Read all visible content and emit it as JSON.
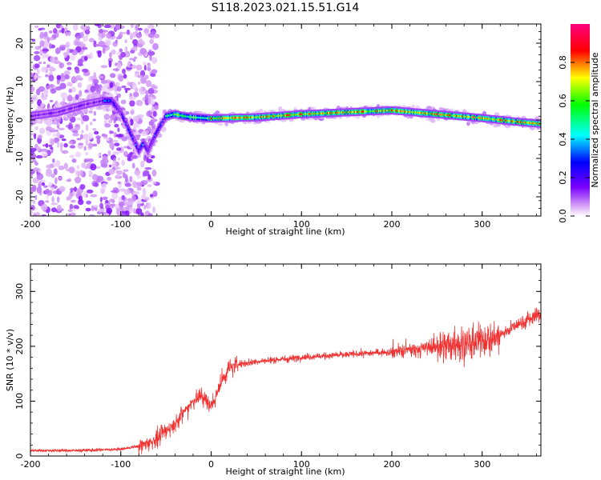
{
  "title": "S118.2023.021.15.51.G14",
  "chart_data": [
    {
      "type": "heatmap",
      "name": "spectrogram",
      "xlabel": "Height of straight line (km)",
      "ylabel": "Frequency (Hz)",
      "xlim": [
        -200,
        365
      ],
      "ylim": [
        -25,
        25
      ],
      "xticks": [
        -200,
        -100,
        0,
        100,
        200,
        300
      ],
      "yticks": [
        -20,
        -10,
        0,
        10,
        20
      ],
      "colorbar": {
        "label": "Normalized spectral amplitude",
        "range": [
          0,
          1
        ],
        "ticks": [
          "0.0",
          "0.2",
          "0.4",
          "0.6",
          "0.8"
        ],
        "colors": [
          "#ffffff",
          "#d9a6f5",
          "#7a00ff",
          "#0000ff",
          "#00ffff",
          "#00ff00",
          "#ffff00",
          "#ff0000",
          "#ff0080"
        ]
      },
      "ridge": {
        "x": [
          -200,
          -170,
          -140,
          -120,
          -110,
          -100,
          -90,
          -80,
          -75,
          -70,
          -62,
          -55,
          -50,
          -40,
          -30,
          -20,
          0,
          50,
          100,
          150,
          200,
          250,
          300,
          340,
          365
        ],
        "frequency": [
          1,
          2,
          4,
          5,
          5,
          2,
          -3,
          -8,
          -6,
          -8,
          -4,
          -1,
          1,
          1.5,
          1,
          0.7,
          0.4,
          0.7,
          1.5,
          2,
          2.5,
          1.5,
          0.5,
          -0.5,
          -1
        ]
      }
    },
    {
      "type": "line",
      "name": "snr",
      "xlabel": "Height of straight line (km)",
      "ylabel": "SNR (10 * v/v)",
      "xlim": [
        -200,
        365
      ],
      "ylim": [
        0,
        350
      ],
      "xticks": [
        -200,
        -100,
        0,
        100,
        200,
        300
      ],
      "yticks": [
        0,
        100,
        200,
        300
      ],
      "line_color": "#f03232",
      "trend": {
        "x": [
          -200,
          -150,
          -100,
          -80,
          -60,
          -40,
          -20,
          -10,
          0,
          10,
          20,
          30,
          50,
          100,
          150,
          200,
          230,
          250,
          280,
          300,
          320,
          340,
          365
        ],
        "y": [
          10,
          10,
          12,
          18,
          30,
          60,
          100,
          110,
          90,
          130,
          160,
          168,
          172,
          180,
          185,
          190,
          195,
          200,
          205,
          210,
          220,
          240,
          260
        ]
      }
    }
  ]
}
